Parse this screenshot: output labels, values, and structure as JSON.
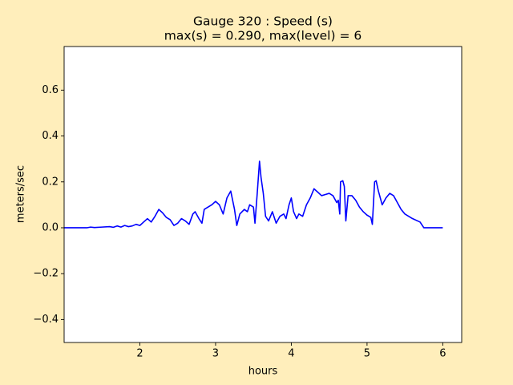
{
  "chart_data": {
    "type": "line",
    "title": [
      "Gauge 320 : Speed (s)",
      "max(s) =   0.290,    max(level) = 6"
    ],
    "xlabel": "hours",
    "ylabel": "meters/sec",
    "xlim": [
      1.0,
      6.25
    ],
    "ylim": [
      -0.5,
      0.79
    ],
    "xticks": [
      2,
      3,
      4,
      5,
      6
    ],
    "yticks": [
      {
        "value": -0.4,
        "label": "−0.4"
      },
      {
        "value": -0.2,
        "label": "−0.2"
      },
      {
        "value": 0,
        "label": "0.0"
      },
      0.2,
      0.4,
      0.6
    ],
    "grid": false,
    "series": [
      {
        "color": "#0000ff",
        "x": [
          1.0,
          1.3,
          1.35,
          1.4,
          1.5,
          1.6,
          1.65,
          1.7,
          1.75,
          1.8,
          1.85,
          1.9,
          1.95,
          2.0,
          2.05,
          2.1,
          2.15,
          2.2,
          2.25,
          2.3,
          2.35,
          2.4,
          2.45,
          2.5,
          2.55,
          2.6,
          2.65,
          2.7,
          2.73,
          2.78,
          2.82,
          2.85,
          2.9,
          2.95,
          3.0,
          3.05,
          3.1,
          3.15,
          3.2,
          3.25,
          3.28,
          3.32,
          3.38,
          3.42,
          3.45,
          3.5,
          3.52,
          3.55,
          3.58,
          3.6,
          3.63,
          3.66,
          3.7,
          3.75,
          3.8,
          3.85,
          3.9,
          3.93,
          3.97,
          4.0,
          4.03,
          4.07,
          4.1,
          4.15,
          4.2,
          4.25,
          4.3,
          4.35,
          4.4,
          4.45,
          4.5,
          4.55,
          4.6,
          4.62,
          4.64,
          4.65,
          4.68,
          4.7,
          4.72,
          4.75,
          4.8,
          4.85,
          4.9,
          4.95,
          5.0,
          5.05,
          5.07,
          5.1,
          5.12,
          5.15,
          5.2,
          5.25,
          5.3,
          5.35,
          5.4,
          5.45,
          5.5,
          5.6,
          5.7,
          5.75,
          6.0
        ],
        "values": [
          0.0,
          0.0,
          0.003,
          0.001,
          0.003,
          0.005,
          0.002,
          0.008,
          0.003,
          0.01,
          0.005,
          0.008,
          0.015,
          0.01,
          0.025,
          0.04,
          0.025,
          0.05,
          0.08,
          0.065,
          0.045,
          0.035,
          0.01,
          0.02,
          0.04,
          0.03,
          0.015,
          0.06,
          0.07,
          0.04,
          0.02,
          0.08,
          0.09,
          0.1,
          0.115,
          0.1,
          0.06,
          0.13,
          0.16,
          0.08,
          0.01,
          0.06,
          0.08,
          0.07,
          0.1,
          0.09,
          0.02,
          0.15,
          0.29,
          0.22,
          0.15,
          0.05,
          0.03,
          0.07,
          0.02,
          0.05,
          0.06,
          0.04,
          0.1,
          0.13,
          0.07,
          0.04,
          0.06,
          0.05,
          0.1,
          0.13,
          0.17,
          0.155,
          0.14,
          0.145,
          0.15,
          0.14,
          0.11,
          0.12,
          0.06,
          0.2,
          0.205,
          0.18,
          0.03,
          0.14,
          0.14,
          0.12,
          0.09,
          0.07,
          0.055,
          0.045,
          0.015,
          0.2,
          0.205,
          0.16,
          0.1,
          0.13,
          0.15,
          0.14,
          0.11,
          0.08,
          0.06,
          0.04,
          0.025,
          0.0,
          0.0
        ]
      }
    ]
  }
}
